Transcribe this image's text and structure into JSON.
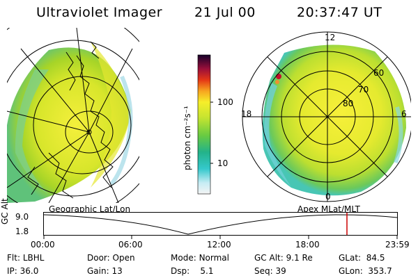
{
  "header": {
    "title": "Ultraviolet Imager",
    "date": "21 Jul 00",
    "time": "20:37:47 UT"
  },
  "colorbar": {
    "unit_label": "photon cm⁻²s⁻¹",
    "ticks": [
      "100",
      "10"
    ]
  },
  "left_panel": {
    "label": "Geographic Lat/Lon"
  },
  "right_panel": {
    "label": "Apex MLat/MLT",
    "mlt_labels": {
      "top": "12",
      "left": "18",
      "right": "6",
      "bottom": "0"
    },
    "lat_labels": [
      "60",
      "70",
      "80"
    ]
  },
  "timeline": {
    "ylabel": "GC Alt",
    "yticks": [
      "9.0",
      "1.8"
    ],
    "xticks": [
      "00:00",
      "06:00",
      "12:00",
      "18:00",
      "23:59"
    ],
    "current_marker_time": "20:37",
    "marker_color": "#cc0000"
  },
  "status": {
    "row1": [
      {
        "label": "Flt:",
        "value": "LBHL"
      },
      {
        "label": "Door:",
        "value": "Open"
      },
      {
        "label": "Mode:",
        "value": "Normal"
      },
      {
        "label": "GC Alt:",
        "value": "9.1 Re"
      },
      {
        "label": "GLat:",
        "value": "84.5"
      }
    ],
    "row2": [
      {
        "label": "IP:",
        "value": "36.0"
      },
      {
        "label": "Gain:",
        "value": "13"
      },
      {
        "label": "Dsp:",
        "value": "5.1"
      },
      {
        "label": "Seq:",
        "value": "39"
      },
      {
        "label": "GLon:",
        "value": "353.7"
      }
    ]
  }
}
